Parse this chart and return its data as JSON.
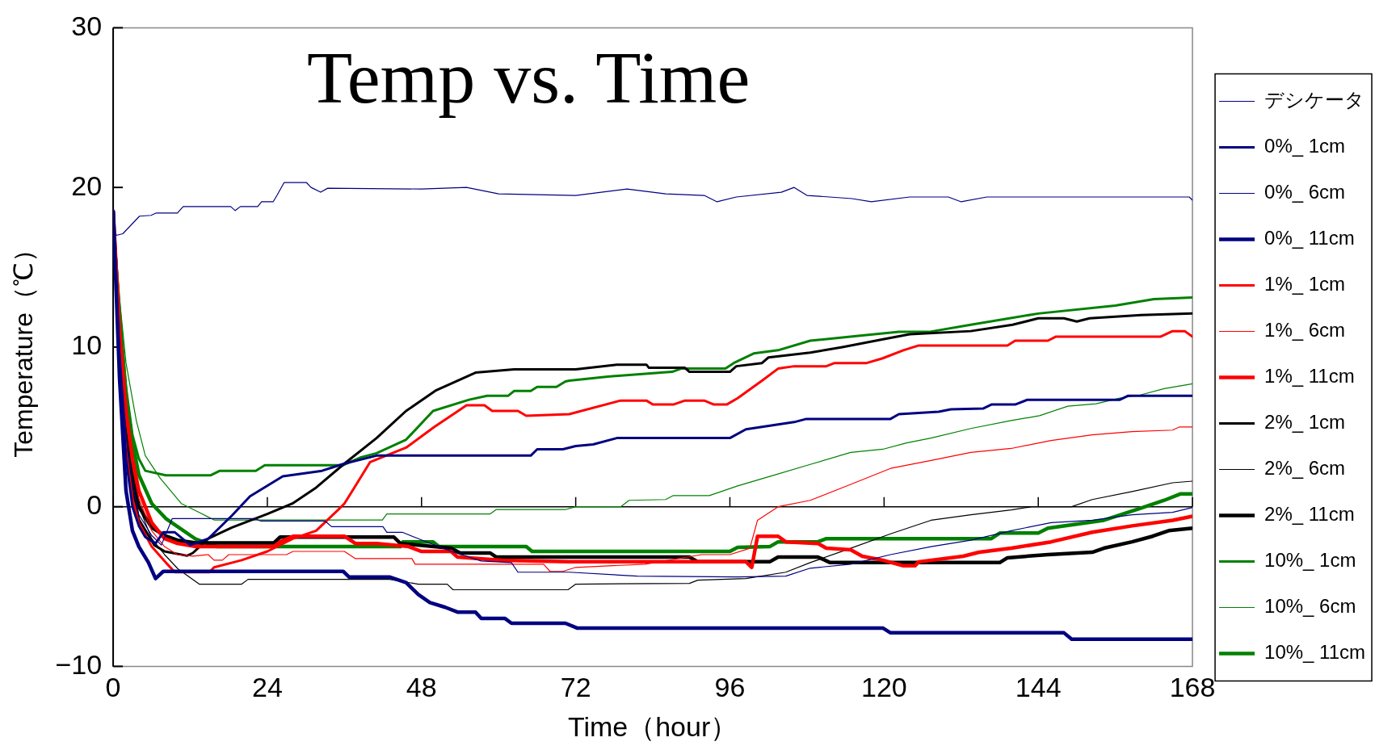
{
  "chart_data": {
    "type": "line",
    "title": "Temp vs. Time",
    "xlabel": "Time（hour）",
    "ylabel": "Temperature（℃）",
    "xlim": [
      0,
      168
    ],
    "xticks": [
      0,
      24,
      48,
      72,
      96,
      120,
      144,
      168
    ],
    "ylim": [
      -10,
      30
    ],
    "yticks": [
      {
        "value": -10,
        "label": "−10"
      },
      0,
      10,
      20,
      30
    ],
    "grid": false,
    "legend": "right",
    "ref_lines": [
      {
        "axis": "y",
        "value": 0,
        "color": "#000000"
      }
    ],
    "series": [
      {
        "name": "デシケータ",
        "color": "#000080",
        "x": [
          0,
          0.5,
          1.5,
          4.1,
          5.9,
          6.7,
          10,
          10.9,
          18.3,
          19,
          19.8,
          22.5,
          23.1,
          24.9,
          25.5,
          26.6,
          30.1,
          30.8,
          32.3,
          33.4,
          48,
          55,
          60,
          72,
          80,
          86,
          92,
          94,
          97,
          104,
          106,
          108,
          115,
          118,
          124,
          130,
          132,
          136,
          167.5,
          168
        ],
        "values": [
          17.4,
          17,
          17.1,
          18.2,
          18.25,
          18.4,
          18.4,
          18.8,
          18.8,
          18.55,
          18.8,
          18.8,
          19.1,
          19.1,
          19.5,
          20.3,
          20.3,
          20,
          19.7,
          19.95,
          19.9,
          20,
          19.6,
          19.5,
          19.9,
          19.6,
          19.5,
          19.1,
          19.4,
          19.7,
          20,
          19.5,
          19.3,
          19.1,
          19.4,
          19.4,
          19.1,
          19.4,
          19.4,
          19.2
        ]
      },
      {
        "name": "0%_ 1cm",
        "color": "#000080",
        "x": [
          0,
          1,
          2,
          3,
          4,
          5,
          6.6,
          7.8,
          9.6,
          12,
          14.8,
          18.5,
          21.3,
          26.4,
          32.5,
          36,
          41,
          65,
          66,
          70,
          72,
          74.7,
          78.4,
          96,
          98.5,
          106,
          107.9,
          121,
          122.3,
          128.5,
          130.4,
          135.4,
          136.7,
          140.4,
          142.3,
          156.7,
          158,
          168
        ],
        "values": [
          18.5,
          9,
          3,
          0,
          -1.2,
          -1.9,
          -2.3,
          -1.6,
          -1.6,
          -2.4,
          -2,
          -0.55,
          0.65,
          1.9,
          2.25,
          2.7,
          3.2,
          3.2,
          3.6,
          3.6,
          3.8,
          3.9,
          4.3,
          4.3,
          4.85,
          5.3,
          5.5,
          5.5,
          5.8,
          5.95,
          6.1,
          6.15,
          6.4,
          6.4,
          6.7,
          6.7,
          6.95,
          6.95
        ]
      },
      {
        "name": "0%_ 6cm",
        "color": "#000080",
        "x": [
          0,
          1,
          2,
          3,
          4,
          6,
          7.5,
          9.2,
          22,
          23,
          33,
          34,
          42,
          42.6,
          45,
          47.5,
          52.6,
          57.3,
          62,
          63,
          71,
          81.6,
          97.2,
          104.7,
          108.5,
          114.8,
          121,
          127.3,
          133.5,
          139.8,
          146,
          152.4,
          158.6,
          164.9,
          168
        ],
        "values": [
          18.5,
          10,
          4.5,
          1.5,
          -0.5,
          -1.8,
          -2.4,
          -0.74,
          -0.74,
          -0.9,
          -0.9,
          -1.25,
          -1.25,
          -1.6,
          -1.6,
          -2,
          -2.8,
          -3.4,
          -3.5,
          -4.1,
          -4.1,
          -4.35,
          -4.4,
          -4.35,
          -3.85,
          -3.6,
          -3,
          -2.5,
          -2.1,
          -1.5,
          -1,
          -0.85,
          -0.5,
          -0.35,
          -0.05
        ]
      },
      {
        "name": "0%_ 11cm",
        "color": "#000080",
        "x": [
          0,
          1,
          2,
          3,
          4,
          5.5,
          6.6,
          7.8,
          35.8,
          36.7,
          43,
          45.6,
          47.5,
          49.3,
          51.7,
          53.6,
          56.4,
          57.3,
          61,
          62,
          70.4,
          72.2,
          119.8,
          121,
          148,
          149.2,
          168
        ],
        "values": [
          18.5,
          8,
          1,
          -1.5,
          -2.5,
          -3.5,
          -4.5,
          -4.05,
          -4.05,
          -4.4,
          -4.4,
          -4.75,
          -5.5,
          -6,
          -6.3,
          -6.6,
          -6.6,
          -7,
          -7,
          -7.3,
          -7.3,
          -7.6,
          -7.6,
          -7.9,
          -7.9,
          -8.3,
          -8.3
        ]
      },
      {
        "name": "1%_ 1cm",
        "color": "#ff0000",
        "x": [
          0,
          1,
          2,
          3,
          4,
          6,
          8.2,
          9.6,
          15,
          15.7,
          20,
          24,
          28,
          31.6,
          35,
          36,
          37.7,
          40,
          45.6,
          50,
          55,
          57.8,
          59,
          63,
          64.3,
          71,
          79,
          83,
          84,
          87.2,
          89,
          92,
          93.5,
          95.5,
          97.2,
          101,
          103.5,
          106,
          111,
          112.3,
          117.3,
          119.8,
          123,
          125.4,
          139.2,
          140.4,
          145.5,
          146.7,
          163,
          164.9,
          166.8,
          168
        ],
        "values": [
          18.5,
          9,
          3.5,
          0.5,
          -1,
          -2.5,
          -3.5,
          -4.1,
          -4.1,
          -3.8,
          -3.35,
          -2.8,
          -2,
          -1.5,
          -0.2,
          0.2,
          1.3,
          2.8,
          3.7,
          5,
          6.35,
          6.35,
          6,
          6,
          5.7,
          5.8,
          6.65,
          6.65,
          6.4,
          6.4,
          6.65,
          6.65,
          6.4,
          6.4,
          6.8,
          7.9,
          8.65,
          8.8,
          8.8,
          9,
          9,
          9.3,
          9.8,
          10.1,
          10.1,
          10.4,
          10.4,
          10.65,
          10.65,
          11,
          11,
          10.65
        ]
      },
      {
        "name": "1%_ 6cm",
        "color": "#ff0000",
        "x": [
          0,
          1,
          2,
          3,
          4,
          6,
          8,
          10,
          12.4,
          14.8,
          15.7,
          17,
          18,
          27,
          28,
          36,
          37.7,
          46.5,
          47,
          67,
          68,
          70,
          72,
          82.8,
          91.6,
          96,
          99.1,
          100.3,
          103.5,
          108.5,
          114.8,
          121,
          127.3,
          133.5,
          139.8,
          146,
          152.4,
          158.6,
          164.9,
          166,
          168
        ],
        "values": [
          18.5,
          11,
          5.5,
          2.5,
          0.5,
          -1.5,
          -2.5,
          -3,
          -3.1,
          -3,
          -3.35,
          -3.35,
          -3,
          -3,
          -2.8,
          -2.8,
          -3.25,
          -3.25,
          -3.6,
          -3.6,
          -4.05,
          -4.05,
          -3.8,
          -3.6,
          -3,
          -3,
          -2.6,
          -0.85,
          0,
          0.4,
          1.4,
          2.4,
          2.9,
          3.4,
          3.65,
          4.15,
          4.5,
          4.7,
          4.8,
          5,
          5
        ]
      },
      {
        "name": "1%_ 11cm",
        "color": "#ff0000",
        "x": [
          0,
          1,
          2,
          3,
          4,
          6,
          8,
          10,
          12.9,
          25,
          26,
          28,
          36,
          37.7,
          41,
          46,
          48,
          52.6,
          53.6,
          60.5,
          71,
          98.5,
          99.4,
          100.3,
          103.5,
          104.7,
          109.7,
          111,
          114.8,
          116.6,
          119.8,
          123,
          124.8,
          125.4,
          132.3,
          134.8,
          139.8,
          146,
          152.4,
          158.6,
          164.9,
          168
        ],
        "values": [
          18.5,
          11,
          6,
          3,
          1,
          -1,
          -2,
          -2.3,
          -2.5,
          -2.5,
          -2.2,
          -1.85,
          -1.85,
          -2.3,
          -2.3,
          -2.5,
          -2.8,
          -2.8,
          -3.15,
          -3.35,
          -3.45,
          -3.45,
          -3.8,
          -1.85,
          -1.85,
          -2.2,
          -2.3,
          -2.6,
          -2.7,
          -3.1,
          -3.35,
          -3.7,
          -3.7,
          -3.45,
          -3.1,
          -2.85,
          -2.6,
          -2.2,
          -1.6,
          -1.2,
          -0.85,
          -0.6
        ]
      },
      {
        "name": "2%_ 1cm",
        "color": "#000000",
        "x": [
          0,
          1,
          2,
          3,
          4,
          6.4,
          8,
          11.5,
          12.4,
          14.8,
          18.5,
          24,
          27.9,
          31.6,
          36,
          41,
          45.6,
          50.3,
          56.4,
          62.4,
          72,
          78.4,
          83,
          83.4,
          89,
          89.7,
          96,
          97,
          101,
          102,
          108.5,
          113.5,
          120,
          124,
          133.5,
          140,
          144,
          148,
          150,
          152,
          160,
          168
        ],
        "values": [
          18.5,
          10,
          4.5,
          1,
          -0.8,
          -2.4,
          -2.8,
          -3.07,
          -2.9,
          -2,
          -1.3,
          -0.45,
          0.2,
          1.2,
          2.7,
          4.3,
          6,
          7.3,
          8.4,
          8.6,
          8.6,
          8.9,
          8.9,
          8.7,
          8.7,
          8.45,
          8.45,
          8.8,
          9,
          9.35,
          9.65,
          10,
          10.5,
          10.8,
          11,
          11.4,
          11.8,
          11.8,
          11.6,
          11.8,
          12,
          12.1
        ]
      },
      {
        "name": "2%_ 6cm",
        "color": "#000000",
        "x": [
          0,
          1,
          2,
          3,
          4,
          6,
          8,
          10.1,
          13.4,
          20,
          21,
          43,
          47.5,
          52,
          52.9,
          70.8,
          72,
          89.7,
          91,
          98.5,
          104.7,
          108.5,
          114.8,
          121,
          127.3,
          133.5,
          139.8,
          143,
          149.2,
          152.4,
          158.6,
          164.9,
          168
        ],
        "values": [
          18.5,
          11,
          6,
          2.5,
          0,
          -2,
          -3,
          -3.9,
          -4.85,
          -4.85,
          -4.55,
          -4.55,
          -4.85,
          -4.85,
          -5.2,
          -5.2,
          -4.85,
          -4.8,
          -4.6,
          -4.5,
          -4.1,
          -3.5,
          -2.6,
          -1.7,
          -0.85,
          -0.5,
          -0.2,
          0,
          0,
          0.45,
          0.95,
          1.5,
          1.6
        ]
      },
      {
        "name": "2%_ 11cm",
        "color": "#000000",
        "x": [
          0,
          1,
          2,
          3,
          4,
          6,
          8,
          10,
          12.9,
          25,
          26,
          43.7,
          44.7,
          52.6,
          54,
          58.7,
          59.6,
          89.7,
          91,
          102.2,
          103.5,
          109.7,
          111.6,
          138,
          139.2,
          145.5,
          152.4,
          154.2,
          158.6,
          161.8,
          164.3,
          168
        ],
        "values": [
          18.5,
          10,
          5,
          2,
          0,
          -1.3,
          -1.8,
          -2.1,
          -2.27,
          -2.27,
          -1.9,
          -1.9,
          -2.3,
          -2.6,
          -2.9,
          -2.9,
          -3.15,
          -3.15,
          -3.45,
          -3.45,
          -3.15,
          -3.15,
          -3.5,
          -3.5,
          -3.2,
          -3,
          -2.85,
          -2.6,
          -2.2,
          -1.85,
          -1.5,
          -1.35
        ]
      },
      {
        "name": "10%_ 1cm",
        "color": "#008000",
        "x": [
          0,
          1,
          2,
          3,
          4,
          5,
          8.2,
          15.2,
          16.6,
          22.2,
          23.6,
          35.8,
          38.6,
          41,
          45.6,
          49.8,
          55.4,
          58.2,
          61.5,
          62.4,
          65,
          66,
          69,
          70.4,
          71,
          77,
          87,
          88.4,
          95.3,
          96.6,
          99.7,
          103.5,
          108.5,
          116,
          122.3,
          127,
          133.5,
          144,
          156,
          162,
          168
        ],
        "values": [
          18.5,
          12,
          7.5,
          4.5,
          3,
          2.25,
          1.97,
          1.97,
          2.25,
          2.25,
          2.6,
          2.6,
          3.1,
          3.35,
          4.2,
          6,
          6.7,
          6.95,
          6.95,
          7.25,
          7.25,
          7.5,
          7.5,
          7.85,
          7.9,
          8.15,
          8.45,
          8.65,
          8.65,
          9,
          9.6,
          9.8,
          10.4,
          10.7,
          10.95,
          10.95,
          11.4,
          12.1,
          12.6,
          13,
          13.1
        ]
      },
      {
        "name": "10%_ 6cm",
        "color": "#008000",
        "x": [
          0,
          1,
          2,
          3.6,
          5,
          7.3,
          10.6,
          13.4,
          15.7,
          41.9,
          42.6,
          58.7,
          59.6,
          70.4,
          72,
          79,
          80.3,
          86,
          87.2,
          92.8,
          97.2,
          102.2,
          108.5,
          114.8,
          119.8,
          123.5,
          127.3,
          133.5,
          139.8,
          144.2,
          148.6,
          153,
          156.7,
          159.9,
          163.6,
          168
        ],
        "values": [
          18.5,
          13,
          9,
          5.4,
          3.2,
          1.8,
          0.2,
          -0.36,
          -0.83,
          -0.83,
          -0.45,
          -0.45,
          -0.18,
          -0.18,
          0,
          0,
          0.4,
          0.45,
          0.7,
          0.7,
          1.3,
          1.9,
          2.65,
          3.4,
          3.6,
          4,
          4.3,
          4.9,
          5.4,
          5.7,
          6.3,
          6.45,
          6.8,
          7,
          7.4,
          7.7
        ]
      },
      {
        "name": "10%_ 11cm",
        "color": "#008000",
        "x": [
          0,
          1,
          2,
          3,
          4,
          6,
          8.2,
          12.9,
          16.2,
          44.7,
          45.1,
          49.8,
          50.7,
          64.3,
          65.2,
          96,
          97.2,
          102.2,
          103.5,
          109.7,
          111,
          136.7,
          138,
          144,
          145.5,
          154.2,
          159.9,
          163.6,
          166.1,
          168
        ],
        "values": [
          17.5,
          12,
          7,
          4,
          2,
          0.2,
          -0.74,
          -2.04,
          -2.5,
          -2.5,
          -2.2,
          -2.2,
          -2.5,
          -2.5,
          -2.8,
          -2.8,
          -2.55,
          -2.5,
          -2.2,
          -2.2,
          -2,
          -2,
          -1.65,
          -1.65,
          -1.35,
          -0.85,
          -0.1,
          0.4,
          0.8,
          0.8
        ]
      }
    ]
  }
}
